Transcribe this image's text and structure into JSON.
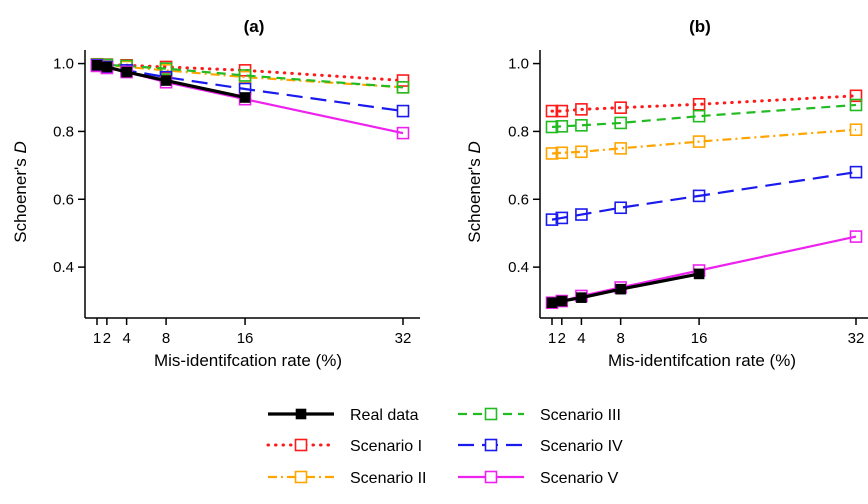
{
  "chart_data": [
    {
      "type": "line",
      "title": "(a)",
      "xlabel": "Mis-identifcation rate (%)",
      "ylabel_prefix": "Schoener's ",
      "ylabel_italic": "D",
      "x": [
        1,
        2,
        4,
        8,
        16,
        32
      ],
      "x_ticks": [
        "1",
        "2",
        "4",
        "8",
        "16",
        "32"
      ],
      "y_ticks": [
        "0.4",
        "0.6",
        "0.8",
        "1.0"
      ],
      "xlim": [
        0,
        33
      ],
      "ylim": [
        0.25,
        1.04
      ],
      "series": [
        {
          "name": "Real data",
          "values": [
            0.995,
            0.99,
            0.975,
            0.95,
            0.9,
            null
          ],
          "color": "#000000",
          "dash": "solid",
          "marker": "filled-square"
        },
        {
          "name": "Scenario I",
          "values": [
            0.998,
            0.997,
            0.995,
            0.99,
            0.98,
            0.95
          ],
          "color": "#ff1a1a",
          "dash": "dotted",
          "marker": "open-square"
        },
        {
          "name": "Scenario II",
          "values": [
            0.997,
            0.995,
            0.99,
            0.98,
            0.96,
            0.93
          ],
          "color": "#ffa500",
          "dash": "dashdot",
          "marker": "open-square"
        },
        {
          "name": "Scenario III",
          "values": [
            0.997,
            0.996,
            0.993,
            0.985,
            0.965,
            0.93
          ],
          "color": "#22bb22",
          "dash": "dashed",
          "marker": "open-square"
        },
        {
          "name": "Scenario IV",
          "values": [
            0.995,
            0.99,
            0.98,
            0.96,
            0.925,
            0.86
          ],
          "color": "#1a1aee",
          "dash": "longdash",
          "marker": "open-square"
        },
        {
          "name": "Scenario V",
          "values": [
            0.993,
            0.987,
            0.975,
            0.945,
            0.895,
            0.795
          ],
          "color": "#ee22ee",
          "dash": "solid",
          "marker": "open-square"
        }
      ]
    },
    {
      "type": "line",
      "title": "(b)",
      "xlabel": "Mis-identifcation rate (%)",
      "ylabel_prefix": "Schoener's ",
      "ylabel_italic": "D",
      "x": [
        1,
        2,
        4,
        8,
        16,
        32
      ],
      "x_ticks": [
        "1",
        "2",
        "4",
        "8",
        "16",
        "32"
      ],
      "y_ticks": [
        "0.4",
        "0.6",
        "0.8",
        "1.0"
      ],
      "xlim": [
        0,
        33
      ],
      "ylim": [
        0.25,
        1.04
      ],
      "series": [
        {
          "name": "Real data",
          "values": [
            0.295,
            0.3,
            0.31,
            0.335,
            0.38,
            null
          ],
          "color": "#000000",
          "dash": "solid",
          "marker": "filled-square"
        },
        {
          "name": "Scenario I",
          "values": [
            0.86,
            0.86,
            0.865,
            0.87,
            0.88,
            0.905
          ],
          "color": "#ff1a1a",
          "dash": "dotted",
          "marker": "open-square"
        },
        {
          "name": "Scenario II",
          "values": [
            0.735,
            0.737,
            0.74,
            0.75,
            0.77,
            0.805
          ],
          "color": "#ffa500",
          "dash": "dashdot",
          "marker": "open-square"
        },
        {
          "name": "Scenario III",
          "values": [
            0.813,
            0.815,
            0.818,
            0.825,
            0.845,
            0.878
          ],
          "color": "#22bb22",
          "dash": "dashed",
          "marker": "open-square"
        },
        {
          "name": "Scenario IV",
          "values": [
            0.54,
            0.545,
            0.555,
            0.575,
            0.61,
            0.68
          ],
          "color": "#1a1aee",
          "dash": "longdash",
          "marker": "open-square"
        },
        {
          "name": "Scenario V",
          "values": [
            0.295,
            0.3,
            0.315,
            0.34,
            0.39,
            0.49
          ],
          "color": "#ee22ee",
          "dash": "solid",
          "marker": "open-square"
        }
      ]
    }
  ],
  "legend": {
    "placement": "bottom-center",
    "columns": [
      [
        "Real data",
        "Scenario I",
        "Scenario II"
      ],
      [
        "Scenario III",
        "Scenario IV",
        "Scenario V"
      ]
    ]
  }
}
